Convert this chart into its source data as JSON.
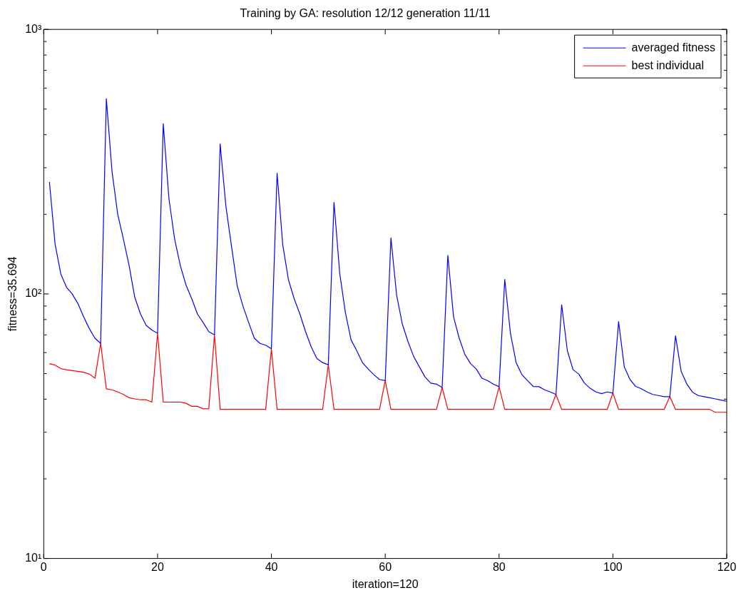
{
  "chart_data": {
    "type": "line",
    "title": "Training by GA: resolution 12/12 generation 11/11",
    "xlabel": "iteration=120",
    "ylabel": "fitness=35.694",
    "x": [
      1,
      2,
      3,
      4,
      5,
      6,
      7,
      8,
      9,
      10,
      11,
      12,
      13,
      14,
      15,
      16,
      17,
      18,
      19,
      20,
      21,
      22,
      23,
      24,
      25,
      26,
      27,
      28,
      29,
      30,
      31,
      32,
      33,
      34,
      35,
      36,
      37,
      38,
      39,
      40,
      41,
      42,
      43,
      44,
      45,
      46,
      47,
      48,
      49,
      50,
      51,
      52,
      53,
      54,
      55,
      56,
      57,
      58,
      59,
      60,
      61,
      62,
      63,
      64,
      65,
      66,
      67,
      68,
      69,
      70,
      71,
      72,
      73,
      74,
      75,
      76,
      77,
      78,
      79,
      80,
      81,
      82,
      83,
      84,
      85,
      86,
      87,
      88,
      89,
      90,
      91,
      92,
      93,
      94,
      95,
      96,
      97,
      98,
      99,
      100,
      101,
      102,
      103,
      104,
      105,
      106,
      107,
      108,
      109,
      110,
      111,
      112,
      113,
      114,
      115,
      116,
      117,
      118,
      119,
      120
    ],
    "series": [
      {
        "name": "averaged fitness",
        "color": "#0000ff",
        "values": [
          265,
          154,
          119,
          106,
          100,
          92,
          82,
          74,
          68,
          65,
          547,
          290,
          200,
          161,
          128,
          97,
          84,
          76,
          73,
          71,
          440,
          229,
          161,
          128,
          108,
          96,
          84,
          78,
          72,
          70,
          369,
          215,
          151,
          107,
          90,
          78,
          68,
          65,
          64,
          62,
          286,
          153,
          113,
          96,
          84,
          72,
          63,
          57,
          55,
          54,
          222,
          120,
          85,
          67,
          61,
          55,
          52,
          49.5,
          47.5,
          47,
          163,
          99,
          77,
          66,
          58,
          53,
          48.5,
          46,
          45.6,
          44.3,
          140,
          82,
          68,
          59,
          54.5,
          52,
          48,
          47,
          45.6,
          44.6,
          113.5,
          71,
          55,
          49.6,
          47,
          44.7,
          44.6,
          43.4,
          42.6,
          41.7,
          91,
          61,
          51.7,
          49.8,
          46,
          44,
          42.6,
          42,
          42.6,
          42.2,
          78.6,
          53,
          47.5,
          44.7,
          43.8,
          42.6,
          41.7,
          41.3,
          40.9,
          40.9,
          69.4,
          50.9,
          45.6,
          42.5,
          41.3,
          40.9,
          40.5,
          40.1,
          39.7,
          39.3
        ]
      },
      {
        "name": "best individual",
        "color": "#ff0000",
        "values": [
          54.5,
          53.8,
          52.2,
          51.7,
          51.3,
          51,
          50.6,
          49.8,
          48,
          65,
          43.8,
          43.4,
          42.6,
          41.7,
          40.5,
          40.1,
          39.8,
          39.8,
          39,
          71,
          39,
          39,
          39,
          39,
          38.6,
          37.6,
          37.6,
          36.8,
          36.8,
          70,
          36.6,
          36.6,
          36.6,
          36.6,
          36.6,
          36.6,
          36.6,
          36.6,
          36.6,
          62,
          36.6,
          36.6,
          36.6,
          36.6,
          36.6,
          36.6,
          36.6,
          36.6,
          36.6,
          54,
          36.6,
          36.6,
          36.6,
          36.6,
          36.6,
          36.6,
          36.6,
          36.6,
          36.6,
          47,
          36.6,
          36.6,
          36.6,
          36.6,
          36.6,
          36.6,
          36.6,
          36.6,
          36.6,
          44.3,
          36.6,
          36.6,
          36.6,
          36.6,
          36.6,
          36.6,
          36.6,
          36.6,
          36.6,
          44.6,
          36.6,
          36.6,
          36.6,
          36.6,
          36.6,
          36.6,
          36.6,
          36.6,
          36.6,
          41.7,
          36.6,
          36.6,
          36.6,
          36.6,
          36.6,
          36.6,
          36.6,
          36.6,
          36.6,
          42.2,
          36.6,
          36.6,
          36.6,
          36.6,
          36.6,
          36.6,
          36.6,
          36.6,
          36.6,
          40.9,
          36.6,
          36.6,
          36.6,
          36.6,
          36.6,
          36.6,
          36.6,
          35.7,
          35.7,
          35.7
        ]
      }
    ],
    "log": "y",
    "xlim": [
      0,
      120
    ],
    "xticks": [
      0,
      20,
      40,
      60,
      80,
      100,
      120
    ],
    "ylim": [
      10,
      1000
    ],
    "yticks": [
      {
        "value": 10,
        "label": "10¹"
      },
      {
        "value": 20,
        "label": null
      },
      {
        "value": 30,
        "label": null
      },
      {
        "value": 40,
        "label": null
      },
      {
        "value": 50,
        "label": null
      },
      {
        "value": 60,
        "label": null
      },
      {
        "value": 70,
        "label": null
      },
      {
        "value": 80,
        "label": null
      },
      {
        "value": 90,
        "label": null
      },
      {
        "value": 100,
        "label": "10²"
      },
      {
        "value": 200,
        "label": null
      },
      {
        "value": 300,
        "label": null
      },
      {
        "value": 400,
        "label": null
      },
      {
        "value": 500,
        "label": null
      },
      {
        "value": 600,
        "label": null
      },
      {
        "value": 700,
        "label": null
      },
      {
        "value": 800,
        "label": null
      },
      {
        "value": 900,
        "label": null
      },
      {
        "value": 1000,
        "label": "10³"
      }
    ],
    "legend": "top right",
    "marker": "none",
    "line_style": "solid"
  }
}
